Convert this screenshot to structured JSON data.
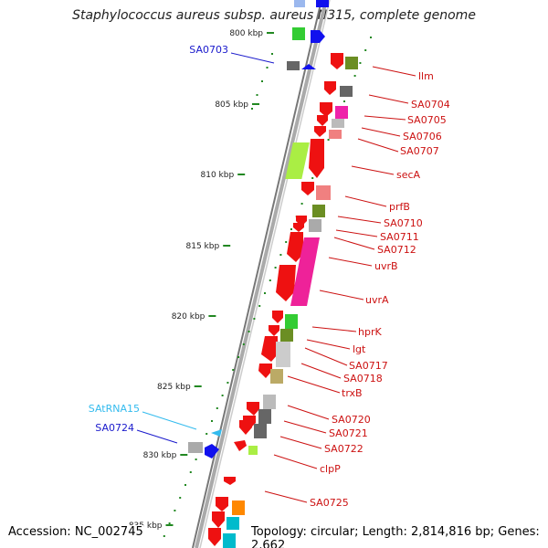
{
  "title": "Staphylococcus aureus subsp. aureus N315, complete genome",
  "footer": {
    "accession": "Accession: NC_002745",
    "summary": "Topology: circular; Length: 2,814,816 bp; Genes: 2,662"
  },
  "ticks": [
    {
      "label": "800 kbp",
      "y": 36
    },
    {
      "label": "805 kbp",
      "y": 114
    },
    {
      "label": "810 kbp",
      "y": 191
    },
    {
      "label": "815 kbp",
      "y": 269
    },
    {
      "label": "820 kbp",
      "y": 346
    },
    {
      "label": "825 kbp",
      "y": 423
    },
    {
      "label": "830 kbp",
      "y": 498
    },
    {
      "label": "835 kbp",
      "y": 575
    }
  ],
  "colors": {
    "forward_label": "#1a1acc",
    "forward_tRNA_label": "#33bbee",
    "reverse_label": "#cc1111",
    "gene_red": "#ee1111",
    "track": "#888888"
  },
  "genes_left": [
    {
      "name": "SA0703",
      "color": "#1a1acc"
    },
    {
      "name": "SAtRNA15",
      "color": "#33bbee"
    },
    {
      "name": "SA0724",
      "color": "#1a1acc"
    }
  ],
  "genes_right": [
    {
      "name": "llm"
    },
    {
      "name": "SA0704"
    },
    {
      "name": "SA0705"
    },
    {
      "name": "SA0706"
    },
    {
      "name": "SA0707"
    },
    {
      "name": "secA"
    },
    {
      "name": "prfB"
    },
    {
      "name": "SA0710"
    },
    {
      "name": "SA0711"
    },
    {
      "name": "SA0712"
    },
    {
      "name": "uvrB"
    },
    {
      "name": "uvrA"
    },
    {
      "name": "hprK"
    },
    {
      "name": "lgt"
    },
    {
      "name": "SA0717"
    },
    {
      "name": "SA0718"
    },
    {
      "name": "trxB"
    },
    {
      "name": "SA0720"
    },
    {
      "name": "SA0721"
    },
    {
      "name": "SA0722"
    },
    {
      "name": "clpP"
    },
    {
      "name": "SA0725"
    }
  ]
}
